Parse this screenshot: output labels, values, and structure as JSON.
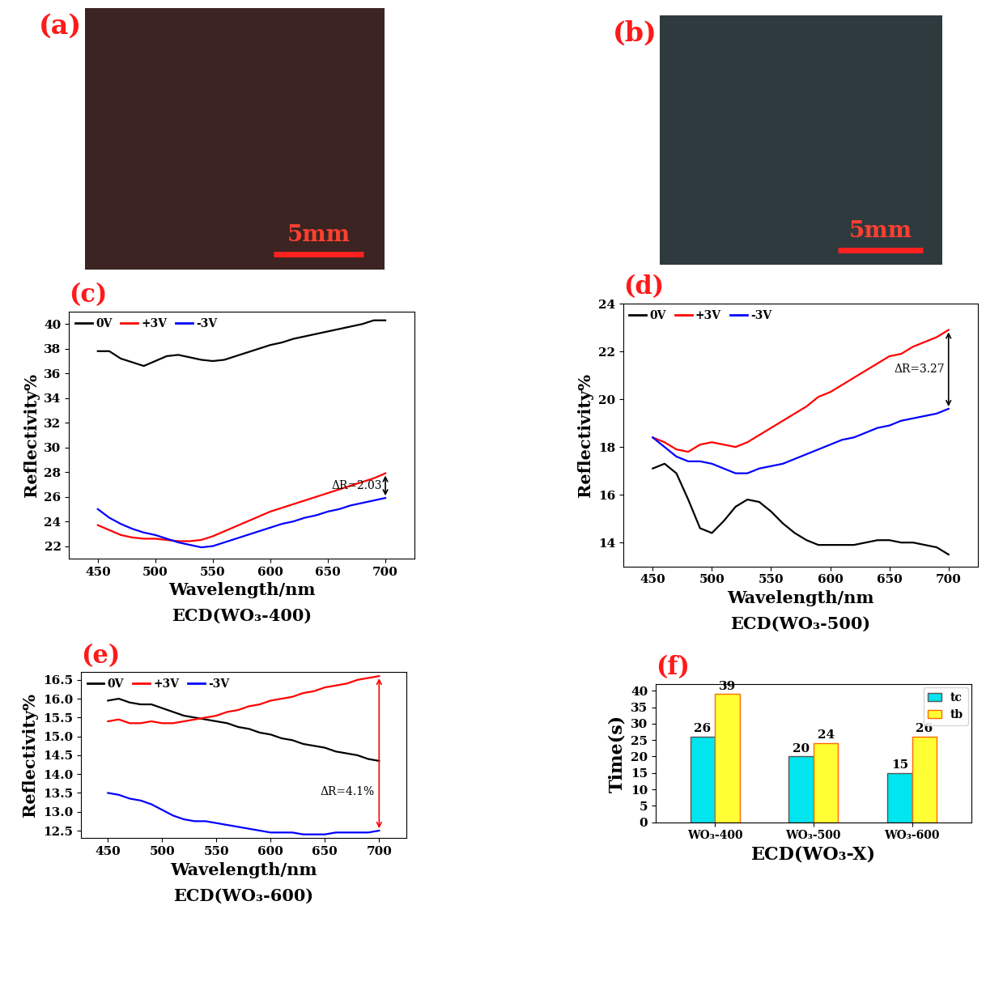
{
  "chart_data": [
    {
      "type": "image",
      "label": "(a)",
      "color": "#3b2421",
      "annotations": [
        "5mm"
      ]
    },
    {
      "type": "image",
      "label": "(b)",
      "color": "#2f3a3f",
      "annotations": [
        "5mm"
      ]
    },
    {
      "type": "line",
      "label": "(c)",
      "title": "ECD(WO₃-400)",
      "x_label": "Wavelength/nm",
      "y_label": "Reflectivity%",
      "x": [
        450,
        460,
        470,
        480,
        490,
        500,
        510,
        520,
        530,
        540,
        550,
        560,
        570,
        580,
        590,
        600,
        610,
        620,
        630,
        640,
        650,
        660,
        670,
        680,
        690,
        700
      ],
      "series": [
        {
          "name": "0V",
          "color": "#000000",
          "values": [
            37.8,
            37.8,
            37.2,
            36.9,
            36.6,
            37.0,
            37.4,
            37.5,
            37.3,
            37.1,
            37.0,
            37.1,
            37.4,
            37.7,
            38.0,
            38.3,
            38.5,
            38.8,
            39.0,
            39.2,
            39.4,
            39.6,
            39.8,
            40.0,
            40.3,
            40.3
          ]
        },
        {
          "name": "+3V",
          "color": "#ff0000",
          "values": [
            23.7,
            23.3,
            22.9,
            22.7,
            22.6,
            22.6,
            22.5,
            22.4,
            22.4,
            22.5,
            22.8,
            23.2,
            23.6,
            24.0,
            24.4,
            24.8,
            25.1,
            25.4,
            25.7,
            26.0,
            26.3,
            26.6,
            26.9,
            27.2,
            27.5,
            27.9
          ]
        },
        {
          "name": "-3V",
          "color": "#0000ff",
          "values": [
            25.0,
            24.3,
            23.8,
            23.4,
            23.1,
            22.9,
            22.6,
            22.3,
            22.1,
            21.9,
            22.0,
            22.3,
            22.6,
            22.9,
            23.2,
            23.5,
            23.8,
            24.0,
            24.3,
            24.5,
            24.8,
            25.0,
            25.3,
            25.5,
            25.7,
            25.9
          ]
        }
      ],
      "xlim": [
        425,
        725
      ],
      "xticks": [
        450,
        500,
        550,
        600,
        650,
        700
      ],
      "ylim": [
        21,
        41
      ],
      "yticks": [
        22,
        24,
        26,
        28,
        30,
        32,
        34,
        36,
        38,
        40
      ],
      "legend": "upper left",
      "annotations": [
        "ΔR=2.03"
      ]
    },
    {
      "type": "line",
      "label": "(d)",
      "title": "ECD(WO₃-500)",
      "x_label": "Wavelength/nm",
      "y_label": "Reflectivity%",
      "x": [
        450,
        460,
        470,
        480,
        490,
        500,
        510,
        520,
        530,
        540,
        550,
        560,
        570,
        580,
        590,
        600,
        610,
        620,
        630,
        640,
        650,
        660,
        670,
        680,
        690,
        700
      ],
      "series": [
        {
          "name": "0V",
          "color": "#000000",
          "values": [
            17.1,
            17.3,
            16.9,
            15.8,
            14.6,
            14.4,
            14.9,
            15.5,
            15.8,
            15.7,
            15.3,
            14.8,
            14.4,
            14.1,
            13.9,
            13.9,
            13.9,
            13.9,
            14.0,
            14.1,
            14.1,
            14.0,
            14.0,
            13.9,
            13.8,
            13.5
          ]
        },
        {
          "name": "+3V",
          "color": "#ff0000",
          "values": [
            18.4,
            18.2,
            17.9,
            17.8,
            18.1,
            18.2,
            18.1,
            18.0,
            18.2,
            18.5,
            18.8,
            19.1,
            19.4,
            19.7,
            20.1,
            20.3,
            20.6,
            20.9,
            21.2,
            21.5,
            21.8,
            21.9,
            22.2,
            22.4,
            22.6,
            22.9
          ]
        },
        {
          "name": "-3V",
          "color": "#0000ff",
          "values": [
            18.4,
            18.0,
            17.6,
            17.4,
            17.4,
            17.3,
            17.1,
            16.9,
            16.9,
            17.1,
            17.2,
            17.3,
            17.5,
            17.7,
            17.9,
            18.1,
            18.3,
            18.4,
            18.6,
            18.8,
            18.9,
            19.1,
            19.2,
            19.3,
            19.4,
            19.6
          ]
        }
      ],
      "xlim": [
        425,
        725
      ],
      "xticks": [
        450,
        500,
        550,
        600,
        650,
        700
      ],
      "ylim": [
        13,
        24
      ],
      "yticks": [
        14,
        16,
        18,
        20,
        22,
        24
      ],
      "legend": "upper left",
      "annotations": [
        "ΔR=3.27"
      ]
    },
    {
      "type": "line",
      "label": "(e)",
      "title": "ECD(WO₃-600)",
      "x_label": "Wavelength/nm",
      "y_label": "Reflectivity%",
      "x": [
        450,
        460,
        470,
        480,
        490,
        500,
        510,
        520,
        530,
        540,
        550,
        560,
        570,
        580,
        590,
        600,
        610,
        620,
        630,
        640,
        650,
        660,
        670,
        680,
        690,
        700
      ],
      "series": [
        {
          "name": "0V",
          "color": "#000000",
          "values": [
            15.95,
            16.0,
            15.9,
            15.85,
            15.85,
            15.75,
            15.65,
            15.55,
            15.5,
            15.45,
            15.4,
            15.35,
            15.25,
            15.2,
            15.1,
            15.05,
            14.95,
            14.9,
            14.8,
            14.75,
            14.7,
            14.6,
            14.55,
            14.5,
            14.4,
            14.35
          ]
        },
        {
          "name": "+3V",
          "color": "#ff0000",
          "values": [
            15.4,
            15.45,
            15.35,
            15.35,
            15.4,
            15.35,
            15.35,
            15.4,
            15.45,
            15.5,
            15.55,
            15.65,
            15.7,
            15.8,
            15.85,
            15.95,
            16.0,
            16.05,
            16.15,
            16.2,
            16.3,
            16.35,
            16.4,
            16.5,
            16.55,
            16.6
          ]
        },
        {
          "name": "-3V",
          "color": "#0000ff",
          "values": [
            13.5,
            13.45,
            13.35,
            13.3,
            13.2,
            13.05,
            12.9,
            12.8,
            12.75,
            12.75,
            12.7,
            12.65,
            12.6,
            12.55,
            12.5,
            12.45,
            12.45,
            12.45,
            12.4,
            12.4,
            12.4,
            12.45,
            12.45,
            12.45,
            12.45,
            12.5
          ]
        }
      ],
      "xlim": [
        425,
        725
      ],
      "xticks": [
        450,
        500,
        550,
        600,
        650,
        700
      ],
      "ylim": [
        12.3,
        16.7
      ],
      "yticks": [
        12.5,
        {
          "value": 13,
          "label": "13.0"
        },
        13.5,
        {
          "value": 14,
          "label": "14.0"
        },
        14.5,
        {
          "value": 15,
          "label": "15.0"
        },
        15.5,
        {
          "value": 16,
          "label": "16.0"
        },
        16.5
      ],
      "legend": "upper left",
      "annotations": [
        "ΔR=4.1%"
      ]
    },
    {
      "type": "bar",
      "label": "(f)",
      "x_label": "ECD(WO₃-X)",
      "y_label": "Time(s)",
      "categories": [
        "WO₃-400",
        "WO₃-500",
        "WO₃-600"
      ],
      "series": [
        {
          "name": "tc",
          "color": "#00e5ee",
          "values": [
            26,
            20,
            15
          ]
        },
        {
          "name": "tb",
          "color": "#ffff33",
          "values": [
            39,
            24,
            26
          ]
        }
      ],
      "ylim": [
        0,
        42
      ],
      "yticks": [
        0,
        5,
        10,
        15,
        20,
        25,
        30,
        35,
        40
      ],
      "legend": "upper right",
      "data_labels": true
    }
  ]
}
